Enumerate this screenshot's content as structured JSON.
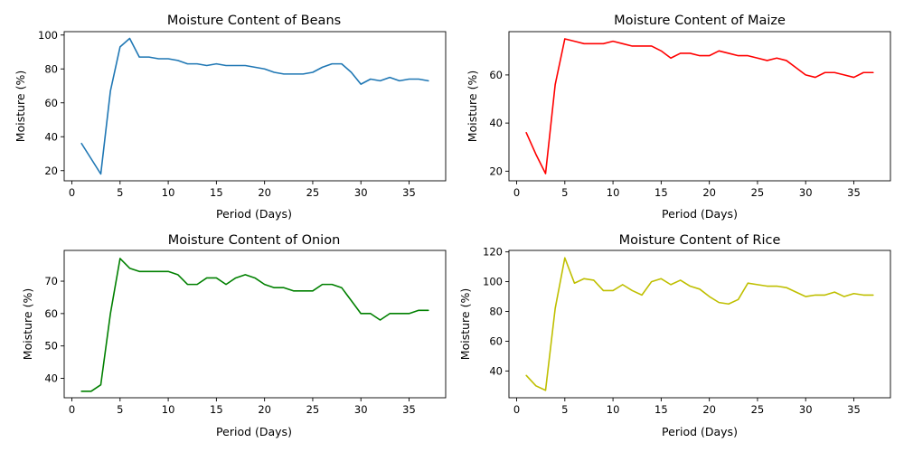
{
  "chart_data": [
    {
      "type": "line",
      "title": "Moisture Content of Beans",
      "xlabel": "Period (Days)",
      "ylabel": "Moisture (%)",
      "xlim": [
        -0.8,
        38.8
      ],
      "ylim": [
        14,
        102
      ],
      "xticks": [
        0,
        5,
        10,
        15,
        20,
        25,
        30,
        35
      ],
      "yticks": [
        20,
        40,
        60,
        80,
        100
      ],
      "grid": false,
      "color": "#1f77b4",
      "x": [
        1,
        2,
        3,
        4,
        5,
        6,
        7,
        8,
        9,
        10,
        11,
        12,
        13,
        14,
        15,
        16,
        17,
        18,
        19,
        20,
        21,
        22,
        23,
        24,
        25,
        26,
        27,
        28,
        29,
        30,
        31,
        32,
        33,
        34,
        35,
        36,
        37
      ],
      "values": [
        36,
        27,
        18,
        67,
        93,
        98,
        87,
        87,
        86,
        86,
        85,
        83,
        83,
        82,
        83,
        82,
        82,
        82,
        81,
        80,
        78,
        77,
        77,
        77,
        78,
        81,
        83,
        83,
        78,
        71,
        74,
        73,
        75,
        73,
        74,
        74,
        73
      ]
    },
    {
      "type": "line",
      "title": "Moisture Content of Maize",
      "xlabel": "Period (Days)",
      "ylabel": "Moisture (%)",
      "xlim": [
        -0.8,
        38.8
      ],
      "ylim": [
        16,
        78
      ],
      "xticks": [
        0,
        5,
        10,
        15,
        20,
        25,
        30,
        35
      ],
      "yticks": [
        20,
        40,
        60
      ],
      "grid": false,
      "color": "#ff0000",
      "x": [
        1,
        2,
        3,
        4,
        5,
        6,
        7,
        8,
        9,
        10,
        11,
        12,
        13,
        14,
        15,
        16,
        17,
        18,
        19,
        20,
        21,
        22,
        23,
        24,
        25,
        26,
        27,
        28,
        29,
        30,
        31,
        32,
        33,
        34,
        35,
        36,
        37
      ],
      "values": [
        36,
        27,
        19,
        56,
        75,
        74,
        73,
        73,
        73,
        74,
        73,
        72,
        72,
        72,
        70,
        67,
        69,
        69,
        68,
        68,
        70,
        69,
        68,
        68,
        67,
        66,
        67,
        66,
        63,
        60,
        59,
        61,
        61,
        60,
        59,
        61,
        61
      ]
    },
    {
      "type": "line",
      "title": "Moisture Content of Onion",
      "xlabel": "Period (Days)",
      "ylabel": "Moisture (%)",
      "xlim": [
        -0.8,
        38.8
      ],
      "ylim": [
        34,
        79.5
      ],
      "xticks": [
        0,
        5,
        10,
        15,
        20,
        25,
        30,
        35
      ],
      "yticks": [
        40,
        50,
        60,
        70
      ],
      "grid": false,
      "color": "#008000",
      "x": [
        1,
        2,
        3,
        4,
        5,
        6,
        7,
        8,
        9,
        10,
        11,
        12,
        13,
        14,
        15,
        16,
        17,
        18,
        19,
        20,
        21,
        22,
        23,
        24,
        25,
        26,
        27,
        28,
        29,
        30,
        31,
        32,
        33,
        34,
        35,
        36,
        37
      ],
      "values": [
        36,
        36,
        38,
        60,
        77,
        74,
        73,
        73,
        73,
        73,
        72,
        69,
        69,
        71,
        71,
        69,
        71,
        72,
        71,
        69,
        68,
        68,
        67,
        67,
        67,
        69,
        69,
        68,
        64,
        60,
        60,
        58,
        60,
        60,
        60,
        61,
        61
      ]
    },
    {
      "type": "line",
      "title": "Moisture Content of Rice",
      "xlabel": "Period (Days)",
      "ylabel": "Moisture (%)",
      "xlim": [
        -0.8,
        38.8
      ],
      "ylim": [
        22,
        121
      ],
      "xticks": [
        0,
        5,
        10,
        15,
        20,
        25,
        30,
        35
      ],
      "yticks": [
        40,
        60,
        80,
        100,
        120
      ],
      "grid": false,
      "color": "#bfbf00",
      "x": [
        1,
        2,
        3,
        4,
        5,
        6,
        7,
        8,
        9,
        10,
        11,
        12,
        13,
        14,
        15,
        16,
        17,
        18,
        19,
        20,
        21,
        22,
        23,
        24,
        25,
        26,
        27,
        28,
        29,
        30,
        31,
        32,
        33,
        34,
        35,
        36,
        37
      ],
      "values": [
        37,
        30,
        27,
        82,
        116,
        99,
        102,
        101,
        94,
        94,
        98,
        94,
        91,
        100,
        102,
        98,
        101,
        97,
        95,
        90,
        86,
        85,
        88,
        99,
        98,
        97,
        97,
        96,
        93,
        90,
        91,
        91,
        93,
        90,
        92,
        91,
        91
      ]
    }
  ]
}
